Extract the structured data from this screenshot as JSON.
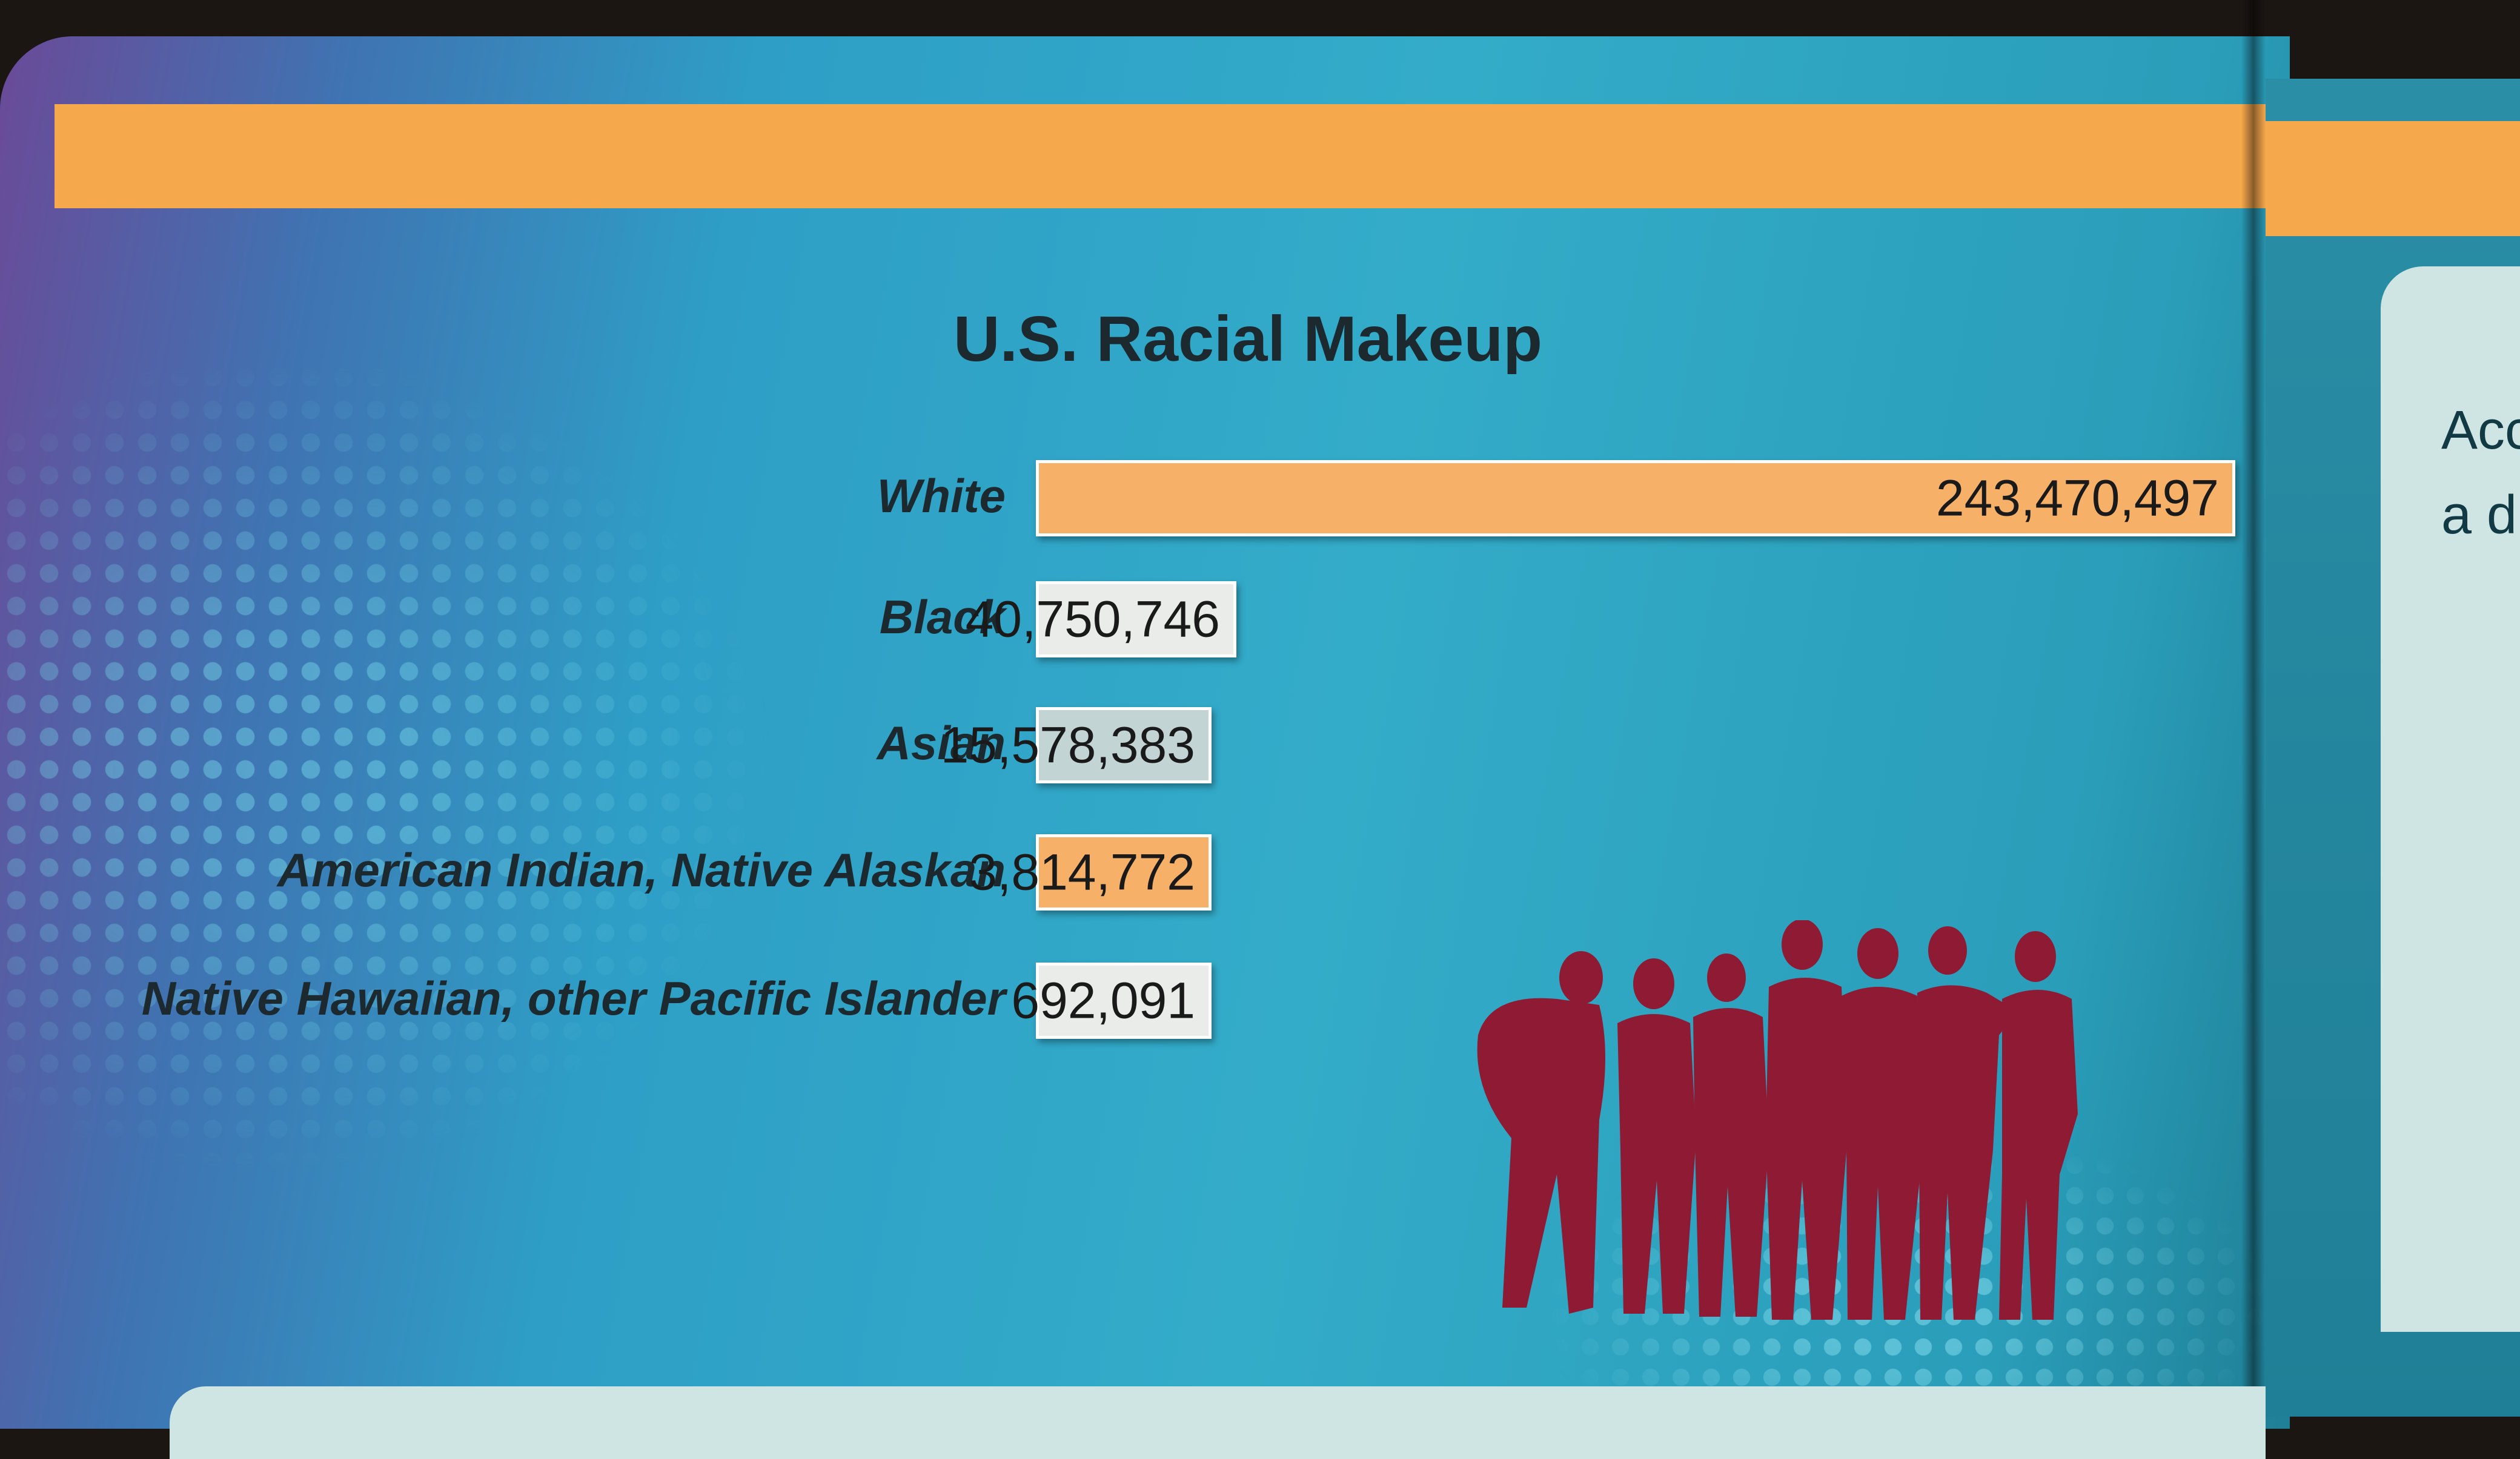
{
  "chart_data": {
    "type": "bar",
    "orientation": "horizontal",
    "title": "U.S. Racial Makeup",
    "categories": [
      "White",
      "Black",
      "Asian",
      "American Indian, Native Alaskan",
      "Native Hawaiian, other Pacific Islander"
    ],
    "values": [
      243470497,
      40750746,
      15578383,
      3814772,
      692091
    ],
    "value_labels": [
      "243,470,497",
      "40,750,746",
      "15,578,383",
      "3,814,772",
      "692,091"
    ],
    "bar_colors": [
      "#f7b068",
      "#e9ece8",
      "#c3d4d4",
      "#f7b068",
      "#e9ece8"
    ],
    "xlabel": "",
    "ylabel": "",
    "grid": false,
    "legend": "none"
  },
  "right_page": {
    "fragment_1": "Acc",
    "fragment_2": "a d"
  },
  "colors": {
    "accent_orange": "#f5a84c",
    "background_teal": "#33acc9",
    "silhouette": "#8e1b33"
  }
}
